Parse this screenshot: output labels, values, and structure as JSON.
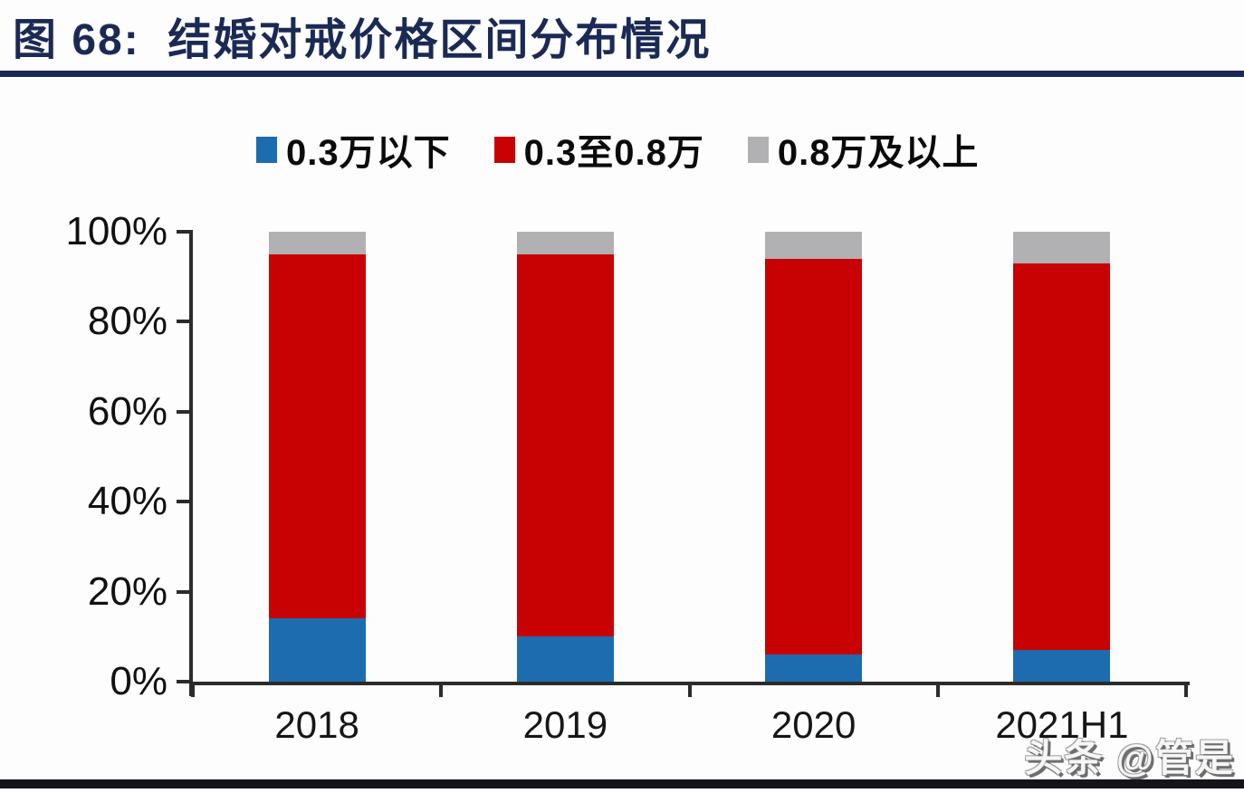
{
  "header": {
    "title": "图 68:  结婚对戒价格区间分布情况"
  },
  "watermark": "头条 @管是",
  "colors": {
    "title_navy": "#1b2a55",
    "axis": "#2b2b2b",
    "series_blue": "#1e6cb0",
    "series_red": "#c80202",
    "series_gray": "#b1b1b3",
    "bottom_bar": "#14141b"
  },
  "chart_data": {
    "type": "bar",
    "stacked": true,
    "title": "结婚对戒价格区间分布情况",
    "xlabel": "",
    "ylabel": "",
    "categories": [
      "2018",
      "2019",
      "2020",
      "2021H1"
    ],
    "series": [
      {
        "name": "0.3万以下",
        "color": "#1e6cb0",
        "values": [
          14,
          10,
          6,
          7
        ]
      },
      {
        "name": "0.3至0.8万",
        "color": "#c80202",
        "values": [
          81,
          85,
          88,
          86
        ]
      },
      {
        "name": "0.8万及以上",
        "color": "#b1b1b3",
        "values": [
          5,
          5,
          6,
          7
        ]
      }
    ],
    "ylim": [
      0,
      100
    ],
    "yticks": [
      "0%",
      "20%",
      "40%",
      "60%",
      "80%",
      "100%"
    ],
    "legend_position": "top",
    "grid": false
  }
}
